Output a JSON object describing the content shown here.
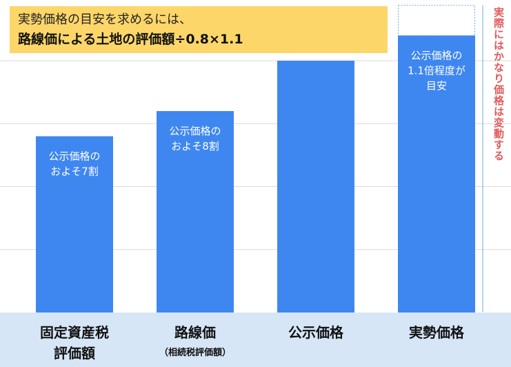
{
  "annotation": {
    "line1": "実勢価格の目安を求めるには、",
    "line2": "路線価による土地の評価額÷0.8×1.1"
  },
  "side_note": "実際にはかなり価格は変動する",
  "colors": {
    "bar": "#3f87f0",
    "axis_band": "#d6e6f6",
    "grid": "#d9d9d9",
    "note_bg": "#fdd66a",
    "side_note": "#e05a5a",
    "dotted_outline": "#6fa8e0",
    "label_text": "#111111"
  },
  "chart_data": {
    "type": "bar",
    "title": "",
    "xlabel": "",
    "ylabel": "",
    "ylim": [
      0,
      1.2
    ],
    "grid": true,
    "categories": [
      {
        "name": "固定資産税\n評価額",
        "sub": ""
      },
      {
        "name": "路線価",
        "sub": "（相続税評価額）"
      },
      {
        "name": "公示価格",
        "sub": ""
      },
      {
        "name": "実勢価格",
        "sub": ""
      }
    ],
    "values": [
      0.7,
      0.8,
      1.0,
      1.1
    ],
    "upper_range_value": 1.22,
    "bar_labels": [
      "公示価格の\nおよそ7割",
      "公示価格の\nおよそ8割",
      "",
      "公示価格の\n1.1倍程度が\n目安"
    ]
  }
}
